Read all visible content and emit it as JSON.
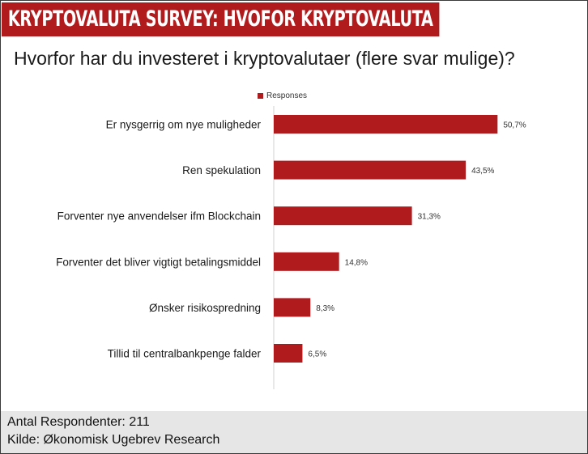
{
  "header": {
    "banner_title": "KRYPTOVALUTA SURVEY: HVOFOR KRYPTOVALUTA",
    "question": "Hvorfor har du investeret i kryptovalutaer (flere svar mulige)?"
  },
  "colors": {
    "bar": "#b01b1e",
    "banner": "#b01b1e",
    "footer_bg": "#e6e6e6"
  },
  "chart_data": {
    "type": "bar",
    "orientation": "horizontal",
    "title": "Hvorfor har du investeret i kryptovalutaer (flere svar mulige)?",
    "legend": [
      "Responses"
    ],
    "legend_position": "top",
    "value_unit": "%",
    "categories": [
      "Er nysgerrig om nye muligheder",
      "Ren spekulation",
      "Forventer nye anvendelser ifm Blockchain",
      "Forventer det bliver vigtigt betalingsmiddel",
      "Ønsker risikospredning",
      "Tillid til centralbankpenge falder"
    ],
    "series": [
      {
        "name": "Responses",
        "values": [
          50.7,
          43.5,
          31.3,
          14.8,
          8.3,
          6.5
        ],
        "labels": [
          "50,7%",
          "43,5%",
          "31,3%",
          "14,8%",
          "8,3%",
          "6,5%"
        ]
      }
    ],
    "xlim": [
      0,
      55
    ],
    "grid": false
  },
  "footer": {
    "respondents": "Antal Respondenter: 211",
    "source": "Kilde: Økonomisk Ugebrev Research"
  }
}
